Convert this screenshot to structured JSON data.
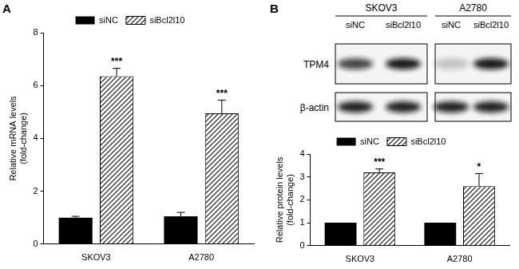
{
  "chart_data": [
    {
      "panel": "A",
      "type": "bar",
      "y_label": [
        "Relative mRNA levels",
        "(fold-change)"
      ],
      "categories": [
        "SKOV3",
        "A2780"
      ],
      "series": [
        {
          "name": "siNC",
          "color": "#000000",
          "values": [
            1.0,
            1.05
          ],
          "errors": [
            0.05,
            0.15
          ]
        },
        {
          "name": "siBcl2l10",
          "color": "#333333",
          "values": [
            6.35,
            4.95
          ],
          "errors": [
            0.3,
            0.5
          ]
        }
      ],
      "annotations": [
        {
          "series": "siBcl2l10",
          "category": "SKOV3",
          "text": "***"
        },
        {
          "series": "siBcl2l10",
          "category": "A2780",
          "text": "***"
        }
      ],
      "ylim": [
        0,
        8
      ],
      "yticks": [
        0,
        2,
        4,
        6,
        8
      ],
      "grid": false,
      "legend": "top"
    },
    {
      "panel": "B",
      "type": "bar",
      "y_label": [
        "Relative protein levels",
        "(fold-change)"
      ],
      "categories": [
        "SKOV3",
        "A2780"
      ],
      "series": [
        {
          "name": "siNC",
          "color": "#000000",
          "values": [
            1,
            1
          ],
          "errors": [
            0,
            0
          ]
        },
        {
          "name": "siBcl2l10",
          "color": "#333333",
          "values": [
            3.2,
            2.6
          ],
          "errors": [
            0.15,
            0.55
          ]
        }
      ],
      "annotations": [
        {
          "series": "siBcl2l10",
          "category": "SKOV3",
          "text": "***"
        },
        {
          "series": "siBcl2l10",
          "category": "A2780",
          "text": "*"
        }
      ],
      "ylim": [
        0,
        4
      ],
      "yticks": [
        0,
        1,
        2,
        3,
        4
      ],
      "grid": false,
      "legend": "top"
    }
  ],
  "blot": {
    "cell_lines": [
      "SKOV3",
      "A2780"
    ],
    "lanes": [
      "siNC",
      "siBcl2l10"
    ],
    "proteins": [
      "TPM4",
      "β-actin"
    ]
  }
}
